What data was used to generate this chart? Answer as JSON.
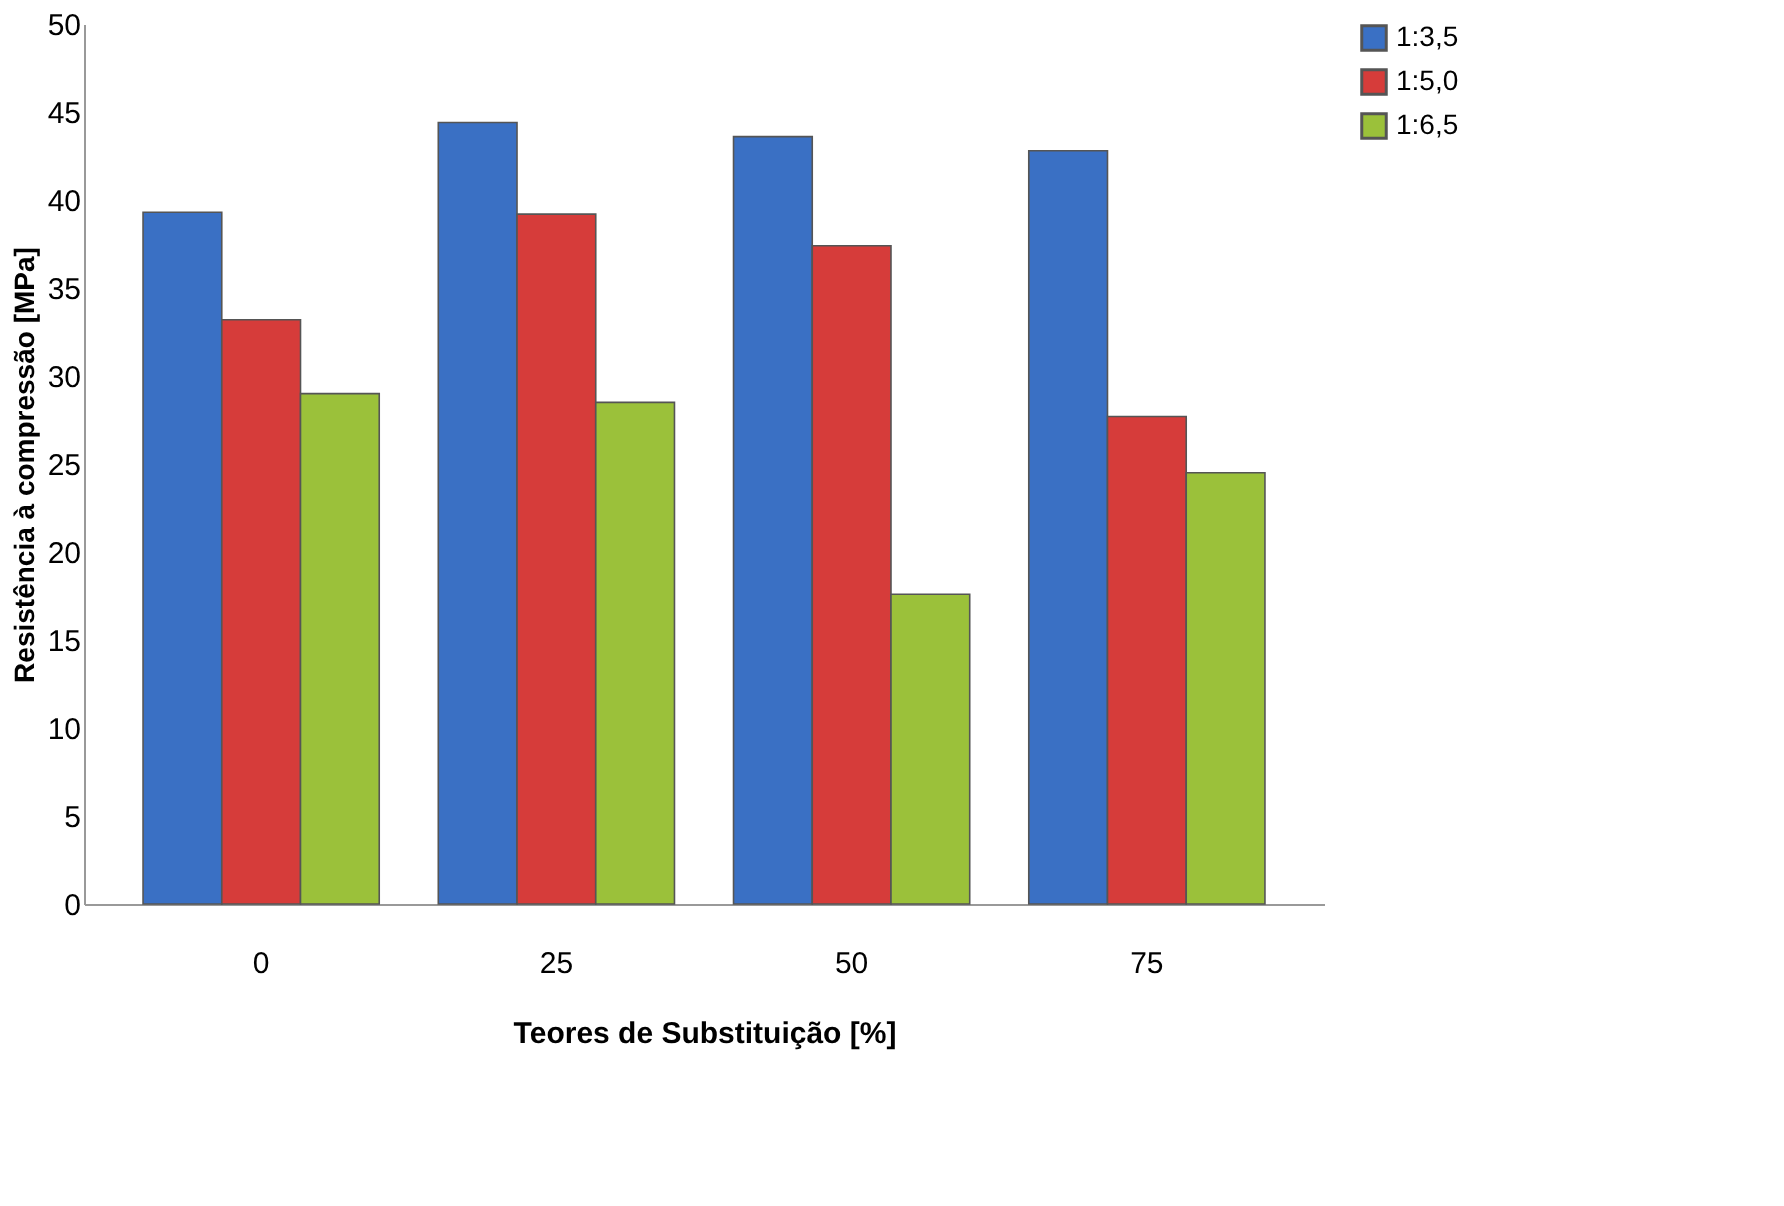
{
  "chart_data": {
    "type": "bar",
    "xlabel": "Teores de Substituição  [%]",
    "ylabel": "Resistência à compressão  [MPa]",
    "categories": [
      "0",
      "25",
      "50",
      "75"
    ],
    "series": [
      {
        "name": "1:3,5",
        "color": "#3a70c4",
        "values": [
          39.3,
          44.4,
          43.6,
          42.8
        ]
      },
      {
        "name": "1:5,0",
        "color": "#d63c3a",
        "values": [
          33.2,
          39.2,
          37.4,
          27.7
        ]
      },
      {
        "name": "1:6,5",
        "color": "#9bc13a",
        "values": [
          29.0,
          28.5,
          17.6,
          24.5
        ]
      }
    ],
    "ylim": [
      0,
      50
    ],
    "yticks": [
      0,
      5,
      10,
      15,
      20,
      25,
      30,
      35,
      40,
      45,
      50
    ],
    "grid": false,
    "legend": "right"
  }
}
